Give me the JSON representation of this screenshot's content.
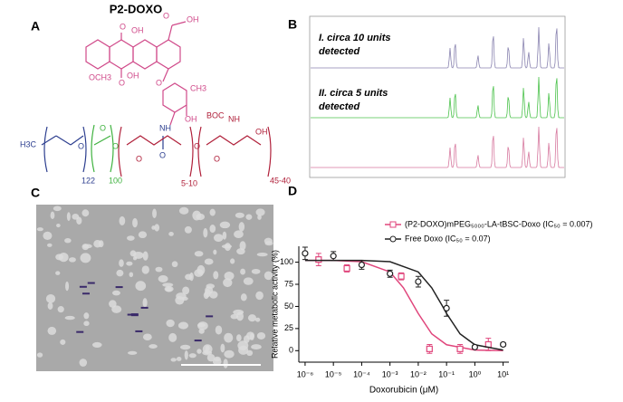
{
  "panels": {
    "a": "A",
    "b": "B",
    "c": "C",
    "d": "D"
  },
  "structure": {
    "title": "P2-DOXO",
    "labels": [
      "O",
      "OH",
      "O",
      "OH",
      "OCH3",
      "O",
      "OH",
      "O",
      "CH3",
      "OH",
      "NH",
      "O",
      "H3C",
      "O",
      "O",
      "O",
      "O",
      "O",
      "O",
      "122",
      "100",
      "5-10",
      "BOC",
      "NH",
      "OH",
      "45-40"
    ]
  },
  "spectra": {
    "label_1": [
      "I. circa 10 units",
      "detected"
    ],
    "label_2": [
      "II. circa 5 units",
      "detected"
    ]
  },
  "chart_data": {
    "type": "scatter",
    "y_label": "Relative metabolic activity (%)",
    "x_label": "Doxorubicin (μM)",
    "log_x": true,
    "xlim": [
      6e-07,
      16
    ],
    "ylim": [
      -13,
      118
    ],
    "xticks": [
      {
        "value": 1e-06,
        "label": "10⁻⁶"
      },
      {
        "value": 1e-05,
        "label": "10⁻⁵"
      },
      {
        "value": 0.0001,
        "label": "10⁻⁴"
      },
      {
        "value": 0.001,
        "label": "10⁻³"
      },
      {
        "value": 0.01,
        "label": "10⁻²"
      },
      {
        "value": 0.1,
        "label": "10⁻¹"
      },
      {
        "value": 1,
        "label": "10⁰"
      },
      {
        "value": 10,
        "label": "10¹"
      }
    ],
    "yticks": [
      0,
      25,
      50,
      75,
      100
    ],
    "series": [
      {
        "name": "(P2-DOXO)mPEG₅₀₀₀-LA-tBSC-Doxo (IC₅₀ = 0.007)",
        "color": "#e0467c",
        "marker": "square",
        "x": [
          3e-06,
          3e-05,
          0.0025,
          0.025,
          0.3,
          3
        ],
        "values": [
          103,
          93,
          84,
          2,
          2,
          7
        ],
        "errors": [
          7,
          4,
          4,
          5,
          5,
          7
        ],
        "fit": {
          "x": [
            1e-06,
            1e-05,
            0.0001,
            0.001,
            0.003,
            0.01,
            0.03,
            0.1,
            1,
            10
          ],
          "values": [
            102,
            102,
            100.6,
            89,
            71,
            42,
            19,
            6.7,
            0.7,
            0.1
          ]
        }
      },
      {
        "name": "Free Doxo (IC₅₀ = 0.07)",
        "color": "#222222",
        "marker": "circle",
        "x": [
          1e-06,
          1e-05,
          0.0001,
          0.001,
          0.01,
          0.1,
          1,
          10
        ],
        "values": [
          110,
          107,
          97,
          87,
          78,
          48,
          4,
          7
        ],
        "errors": [
          7,
          5,
          5,
          4,
          6,
          9,
          2,
          2
        ],
        "fit": {
          "x": [
            1e-06,
            0.0001,
            0.001,
            0.01,
            0.03,
            0.07,
            0.1,
            0.3,
            1,
            10
          ],
          "values": [
            102,
            102,
            100.6,
            89,
            71,
            51,
            42,
            19,
            6.7,
            0.7
          ]
        }
      }
    ]
  }
}
